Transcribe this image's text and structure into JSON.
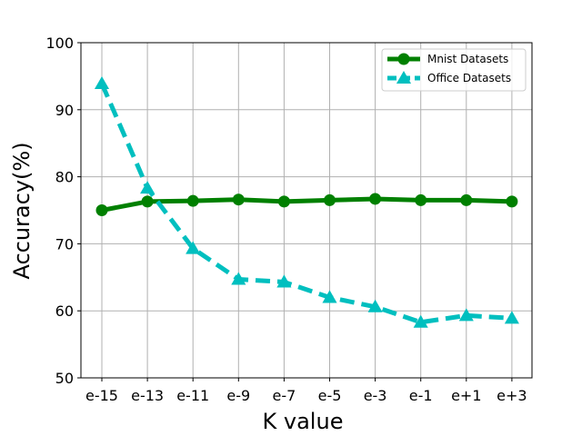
{
  "chart_data": {
    "type": "line",
    "title": "",
    "xlabel": "K value",
    "ylabel": "Accuracy(%)",
    "categories": [
      "e-15",
      "e-13",
      "e-11",
      "e-9",
      "e-7",
      "e-5",
      "e-3",
      "e-1",
      "e+1",
      "e+3"
    ],
    "ylim": [
      50,
      100
    ],
    "yticks": [
      "50",
      "60",
      "70",
      "80",
      "90",
      "100"
    ],
    "grid": true,
    "legend_position": "top-right",
    "series": [
      {
        "name": "Mnist Datasets",
        "color": "#008000",
        "marker": "circle",
        "line_style": "solid",
        "values": [
          75.0,
          76.3,
          76.4,
          76.6,
          76.3,
          76.5,
          76.7,
          76.5,
          76.5,
          76.3
        ]
      },
      {
        "name": "Office Datasets",
        "color": "#00bfbf",
        "marker": "triangle",
        "line_style": "dashed",
        "values": [
          93.9,
          78.3,
          69.3,
          64.7,
          64.3,
          62.0,
          60.6,
          58.3,
          59.3,
          58.9
        ]
      }
    ]
  }
}
